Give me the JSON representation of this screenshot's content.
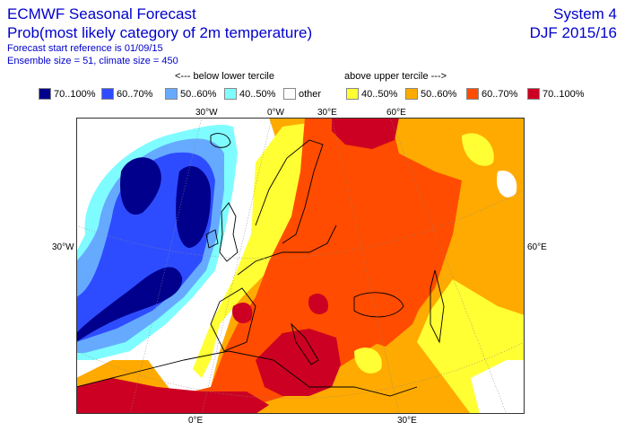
{
  "header": {
    "title": "ECMWF Seasonal Forecast",
    "subtitle": "Prob(most likely category of 2m temperature)",
    "forecast_reference": "Forecast start reference is 01/09/15",
    "ensemble_info": "Ensemble size = 51, climate size = 450",
    "system": "System 4",
    "season": "DJF 2015/16"
  },
  "legend": {
    "below_label": "<--- below lower tercile",
    "above_label": "above upper tercile --->",
    "items": [
      {
        "label": "70..100%",
        "color": "#00008c",
        "category": "below"
      },
      {
        "label": "60..70%",
        "color": "#2e4cff",
        "category": "below"
      },
      {
        "label": "50..60%",
        "color": "#66aaff",
        "category": "below"
      },
      {
        "label": "40..50%",
        "color": "#7ffcff",
        "category": "below"
      },
      {
        "label": "other",
        "color": "#ffffff",
        "category": "neutral"
      },
      {
        "label": "40..50%",
        "color": "#ffff33",
        "category": "above"
      },
      {
        "label": "50..60%",
        "color": "#ffaa00",
        "category": "above"
      },
      {
        "label": "60..70%",
        "color": "#ff4c00",
        "category": "above"
      },
      {
        "label": "70..100%",
        "color": "#cc0022",
        "category": "above"
      }
    ]
  },
  "map": {
    "region": "Europe / North Atlantic",
    "top_ticks": [
      "30°W",
      "0°W",
      "30°E",
      "60°E"
    ],
    "left_ticks": [
      "30°W"
    ],
    "right_ticks": [
      "60°E"
    ],
    "bottom_ticks": [
      "0°E",
      "30°E"
    ]
  }
}
